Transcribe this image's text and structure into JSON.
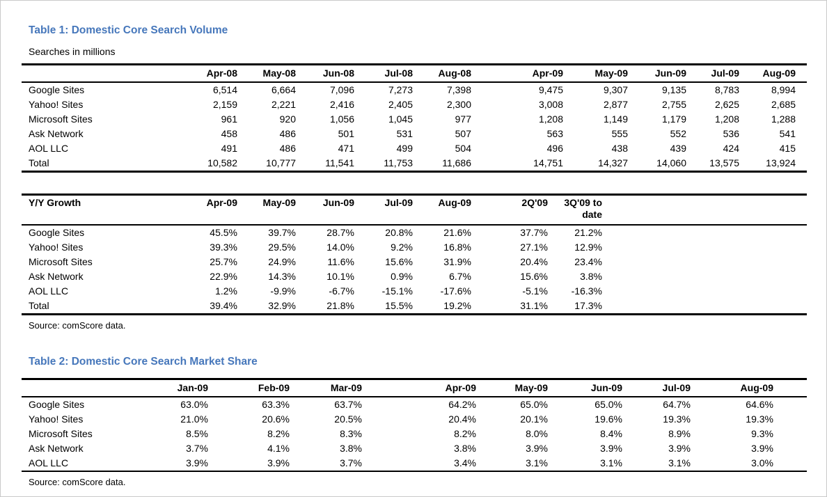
{
  "accent_color": "#4677BB",
  "table1": {
    "title": "Table 1: Domestic Core Search Volume",
    "subtitle": "Searches in millions",
    "corner": "",
    "columns": [
      "Apr-08",
      "May-08",
      "Jun-08",
      "Jul-08",
      "Aug-08",
      "Apr-09",
      "May-09",
      "Jun-09",
      "Jul-09",
      "Aug-09"
    ],
    "rows": [
      {
        "label": "Google Sites",
        "values": [
          "6,514",
          "6,664",
          "7,096",
          "7,273",
          "7,398",
          "9,475",
          "9,307",
          "9,135",
          "8,783",
          "8,994"
        ]
      },
      {
        "label": "Yahoo! Sites",
        "values": [
          "2,159",
          "2,221",
          "2,416",
          "2,405",
          "2,300",
          "3,008",
          "2,877",
          "2,755",
          "2,625",
          "2,685"
        ]
      },
      {
        "label": "Microsoft Sites",
        "values": [
          "961",
          "920",
          "1,056",
          "1,045",
          "977",
          "1,208",
          "1,149",
          "1,179",
          "1,208",
          "1,288"
        ]
      },
      {
        "label": "Ask Network",
        "values": [
          "458",
          "486",
          "501",
          "531",
          "507",
          "563",
          "555",
          "552",
          "536",
          "541"
        ]
      },
      {
        "label": "AOL LLC",
        "values": [
          "491",
          "486",
          "471",
          "499",
          "504",
          "496",
          "438",
          "439",
          "424",
          "415"
        ]
      },
      {
        "label": "Total",
        "values": [
          "10,582",
          "10,777",
          "11,541",
          "11,753",
          "11,686",
          "14,751",
          "14,327",
          "14,060",
          "13,575",
          "13,924"
        ]
      }
    ],
    "source": "Source: comScore data."
  },
  "growth": {
    "corner": "Y/Y Growth",
    "columns": [
      "Apr-09",
      "May-09",
      "Jun-09",
      "Jul-09",
      "Aug-09",
      "2Q'09",
      "3Q'09 to date"
    ],
    "rows": [
      {
        "label": "Google Sites",
        "values": [
          "45.5%",
          "39.7%",
          "28.7%",
          "20.8%",
          "21.6%",
          "37.7%",
          "21.2%"
        ]
      },
      {
        "label": "Yahoo! Sites",
        "values": [
          "39.3%",
          "29.5%",
          "14.0%",
          "9.2%",
          "16.8%",
          "27.1%",
          "12.9%"
        ]
      },
      {
        "label": "Microsoft Sites",
        "values": [
          "25.7%",
          "24.9%",
          "11.6%",
          "15.6%",
          "31.9%",
          "20.4%",
          "23.4%"
        ]
      },
      {
        "label": "Ask Network",
        "values": [
          "22.9%",
          "14.3%",
          "10.1%",
          "0.9%",
          "6.7%",
          "15.6%",
          "3.8%"
        ]
      },
      {
        "label": "AOL LLC",
        "values": [
          "1.2%",
          "-9.9%",
          "-6.7%",
          "-15.1%",
          "-17.6%",
          "-5.1%",
          "-16.3%"
        ]
      },
      {
        "label": "Total",
        "values": [
          "39.4%",
          "32.9%",
          "21.8%",
          "15.5%",
          "19.2%",
          "31.1%",
          "17.3%"
        ]
      }
    ]
  },
  "table2": {
    "title": "Table 2: Domestic Core Search Market Share",
    "corner": "",
    "columns": [
      "Jan-09",
      "Feb-09",
      "Mar-09",
      "Apr-09",
      "May-09",
      "Jun-09",
      "Jul-09",
      "Aug-09"
    ],
    "rows": [
      {
        "label": "Google Sites",
        "values": [
          "63.0%",
          "63.3%",
          "63.7%",
          "64.2%",
          "65.0%",
          "65.0%",
          "64.7%",
          "64.6%"
        ]
      },
      {
        "label": "Yahoo! Sites",
        "values": [
          "21.0%",
          "20.6%",
          "20.5%",
          "20.4%",
          "20.1%",
          "19.6%",
          "19.3%",
          "19.3%"
        ]
      },
      {
        "label": "Microsoft Sites",
        "values": [
          "8.5%",
          "8.2%",
          "8.3%",
          "8.2%",
          "8.0%",
          "8.4%",
          "8.9%",
          "9.3%"
        ]
      },
      {
        "label": "Ask Network",
        "values": [
          "3.7%",
          "4.1%",
          "3.8%",
          "3.8%",
          "3.9%",
          "3.9%",
          "3.9%",
          "3.9%"
        ]
      },
      {
        "label": "AOL LLC",
        "values": [
          "3.9%",
          "3.9%",
          "3.7%",
          "3.4%",
          "3.1%",
          "3.1%",
          "3.1%",
          "3.0%"
        ]
      }
    ],
    "source": "Source: comScore data."
  }
}
